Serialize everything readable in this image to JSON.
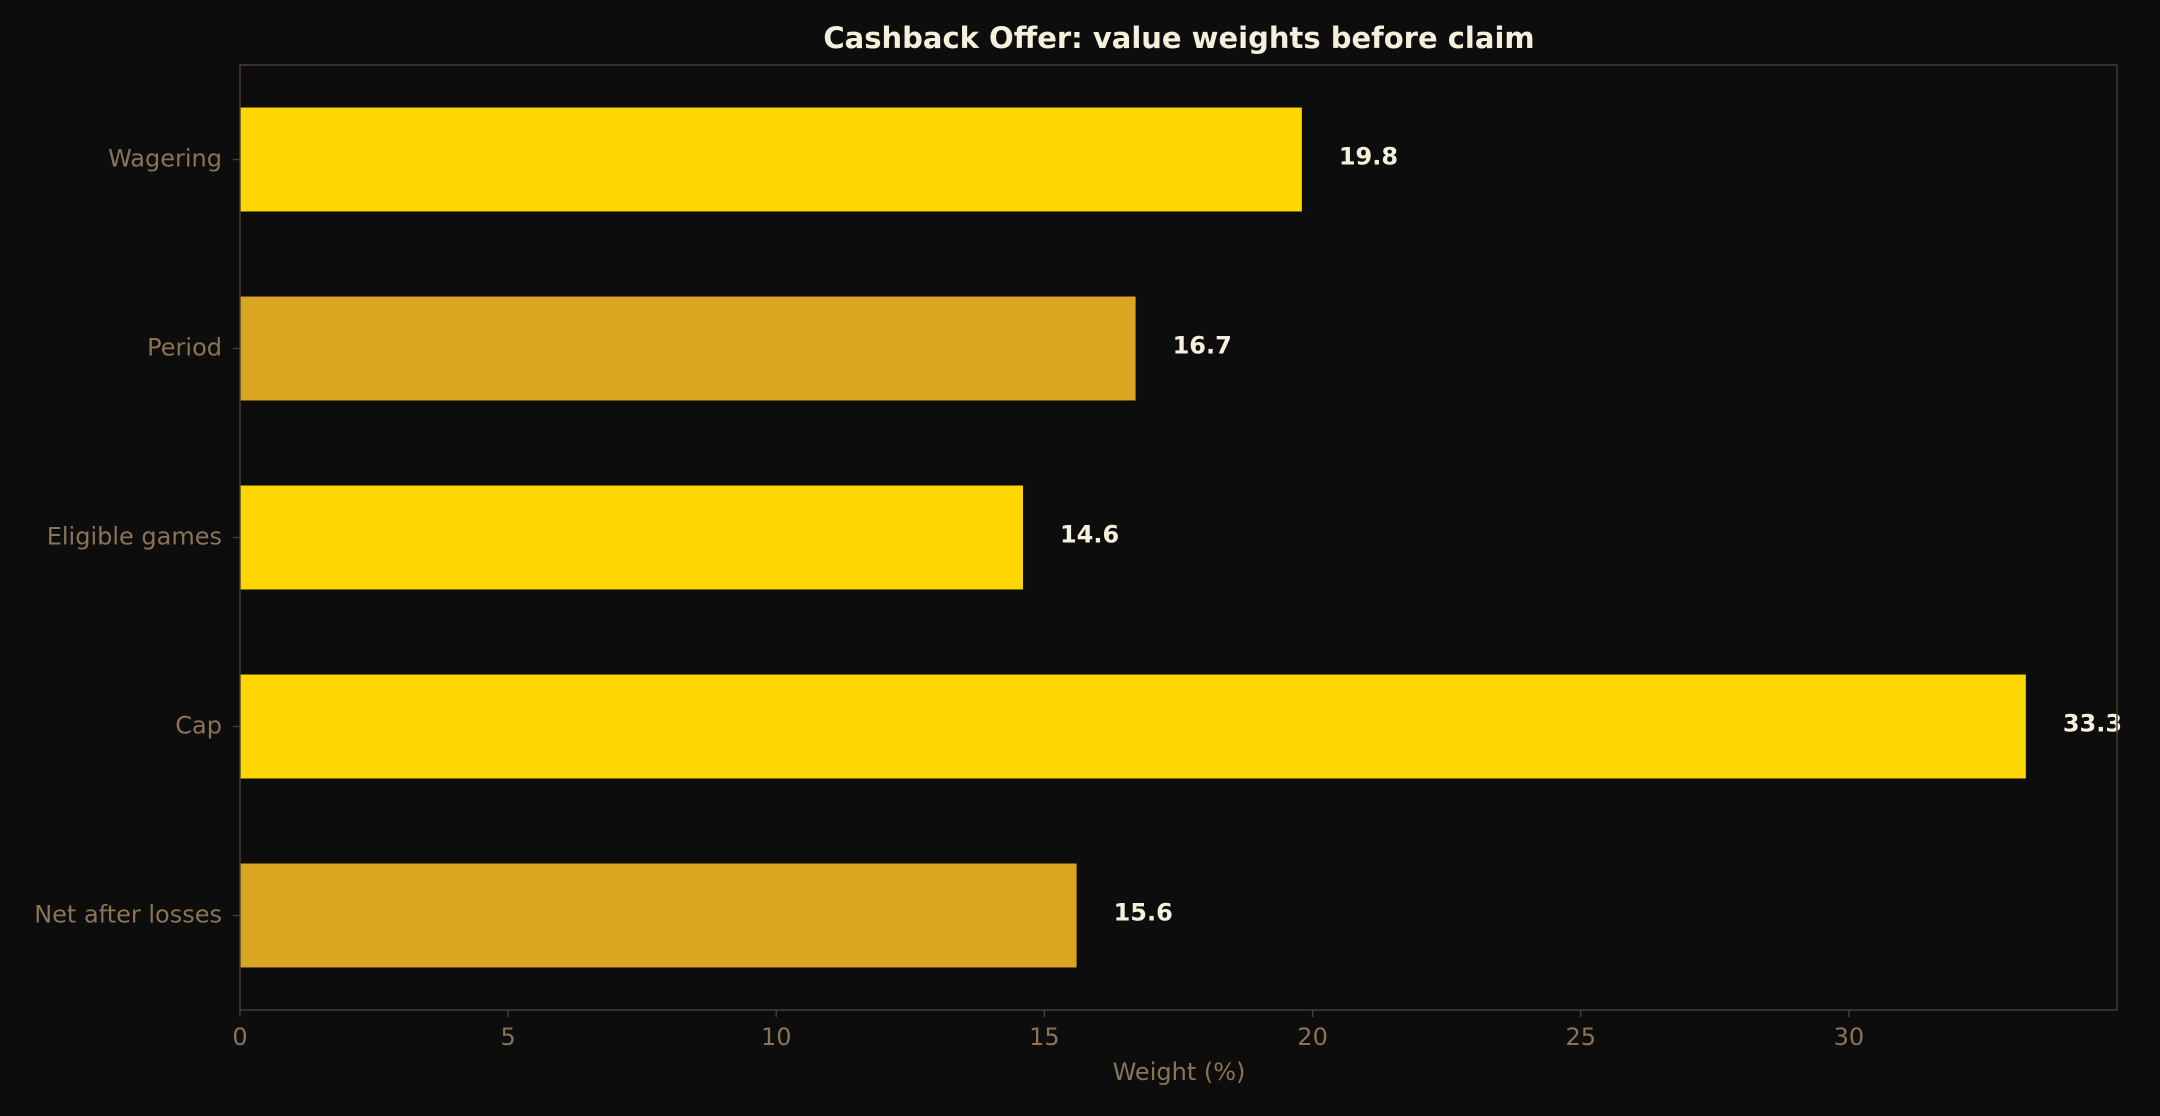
{
  "chart_data": {
    "type": "barh",
    "title": "Cashback Offer: value weights before claim",
    "categories": [
      "Wagering",
      "Period",
      "Eligible games",
      "Cap",
      "Net after losses"
    ],
    "values": [
      19.8,
      16.7,
      14.6,
      33.3,
      15.6
    ],
    "colors": [
      "#FFD700",
      "#DAA520",
      "#FFD700",
      "#FFD700",
      "#DAA520"
    ],
    "xlabel": "Weight (%)",
    "xlim": [
      0,
      35
    ],
    "xticks": [
      0,
      5,
      10,
      15,
      20,
      25,
      30
    ]
  }
}
